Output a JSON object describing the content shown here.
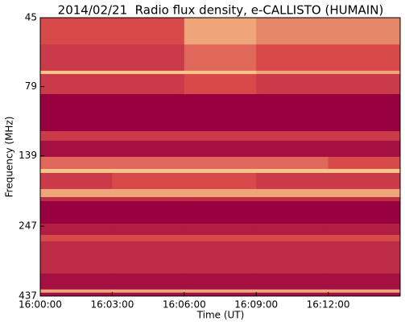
{
  "chart_data": {
    "type": "heatmap",
    "title": "2014/02/21  Radio flux density, e-CALLISTO (HUMAIN)",
    "xlabel": "Time (UT)",
    "ylabel": "Frequency (MHz)",
    "xlim": [
      "16:00:00",
      "16:15:00"
    ],
    "xticks": [
      "16:00:00",
      "16:03:00",
      "16:06:00",
      "16:09:00",
      "16:12:00"
    ],
    "x_edges": [
      "16:00:00",
      "16:03:00",
      "16:06:00",
      "16:09:00",
      "16:12:00",
      "16:15:00"
    ],
    "ylim": [
      437,
      45
    ],
    "yscale": "log",
    "yticks": [
      45,
      79,
      139,
      247,
      437
    ],
    "y_edges": [
      45,
      56,
      69.4,
      71.3,
      84,
      113.6,
      122.9,
      140.2,
      154.7,
      159.9,
      182.4,
      194.8,
      201.2,
      241.9,
      265.2,
      279.4,
      363.3,
      414,
      425,
      437
    ],
    "z": [
      [
        5,
        5,
        8,
        7,
        7
      ],
      [
        4,
        4,
        6,
        5,
        5
      ],
      [
        9,
        9,
        9,
        8,
        8
      ],
      [
        4,
        4,
        5,
        4,
        4
      ],
      [
        0,
        0,
        0,
        0,
        0
      ],
      [
        4,
        4,
        4,
        4,
        4
      ],
      [
        1,
        1,
        1,
        1,
        1
      ],
      [
        6,
        6,
        6,
        6,
        5
      ],
      [
        9,
        9,
        9,
        9,
        9
      ],
      [
        4,
        5,
        5,
        4,
        4
      ],
      [
        8,
        8,
        8,
        8,
        8
      ],
      [
        3,
        3,
        3,
        3,
        3
      ],
      [
        0,
        0,
        0,
        0,
        0
      ],
      [
        2,
        2,
        2,
        2,
        2
      ],
      [
        5,
        5,
        5,
        5,
        5
      ],
      [
        3,
        3,
        3,
        3,
        3
      ],
      [
        1,
        1,
        1,
        1,
        1
      ],
      [
        8,
        8,
        8,
        8,
        8
      ],
      [
        1,
        1,
        1,
        1,
        1
      ]
    ],
    "zlim": [
      0,
      10
    ],
    "colormap": [
      "#99003f",
      "#d8494a",
      "#fde39a"
    ]
  }
}
